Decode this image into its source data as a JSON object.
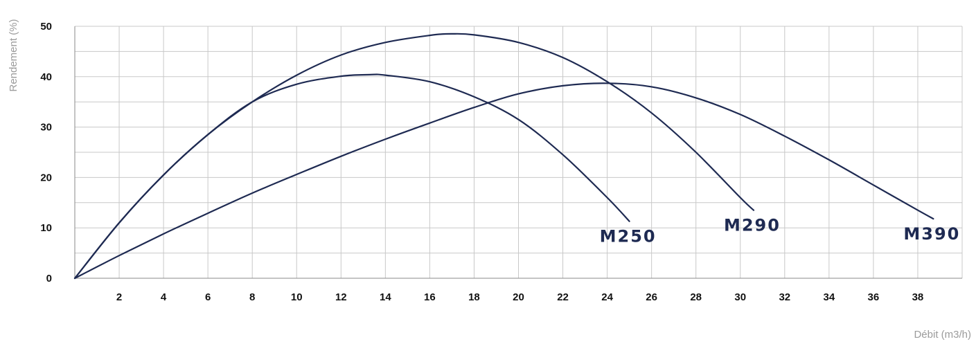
{
  "chart_data": {
    "type": "line",
    "title": "",
    "xlabel": "Débit (m3/h)",
    "ylabel": "Rendement (%)",
    "xlim": [
      0,
      40
    ],
    "ylim": [
      0,
      50
    ],
    "x_ticks": [
      "2",
      "4",
      "6",
      "8",
      "10",
      "12",
      "14",
      "16",
      "18",
      "20",
      "22",
      "24",
      "26",
      "28",
      "30",
      "32",
      "34",
      "36",
      "38"
    ],
    "y_ticks": [
      "0",
      "10",
      "20",
      "30",
      "40",
      "50"
    ],
    "grid": true,
    "line_color": "#1e2a52",
    "series": [
      {
        "name": "M250",
        "x": [
          0,
          2,
          4,
          6,
          8,
          10,
          12,
          13.3,
          14,
          16,
          18,
          20,
          22,
          24,
          25
        ],
        "y": [
          0,
          11,
          20.5,
          28.5,
          35,
          38.5,
          40.1,
          40.4,
          40.3,
          39,
          36,
          31.5,
          24.5,
          16,
          11.3
        ]
      },
      {
        "name": "M290",
        "x": [
          0,
          2,
          4,
          6,
          8,
          10,
          12,
          14,
          16,
          17,
          18,
          20,
          22,
          24,
          26,
          28,
          30,
          30.6
        ],
        "y": [
          0,
          11,
          20.5,
          28.5,
          35,
          40.3,
          44.3,
          46.8,
          48.2,
          48.5,
          48.3,
          46.8,
          43.8,
          39,
          32.8,
          25,
          16,
          13.5
        ]
      },
      {
        "name": "M390",
        "x": [
          0,
          2,
          4,
          6,
          8,
          10,
          12,
          14,
          16,
          18,
          20,
          22,
          24,
          26,
          28,
          30,
          32,
          34,
          36,
          38,
          38.7
        ],
        "y": [
          0,
          4.5,
          8.8,
          12.9,
          16.9,
          20.6,
          24.2,
          27.6,
          30.8,
          33.9,
          36.6,
          38.2,
          38.7,
          38,
          35.8,
          32.5,
          28.2,
          23.5,
          18.5,
          13.5,
          11.8
        ]
      }
    ]
  }
}
